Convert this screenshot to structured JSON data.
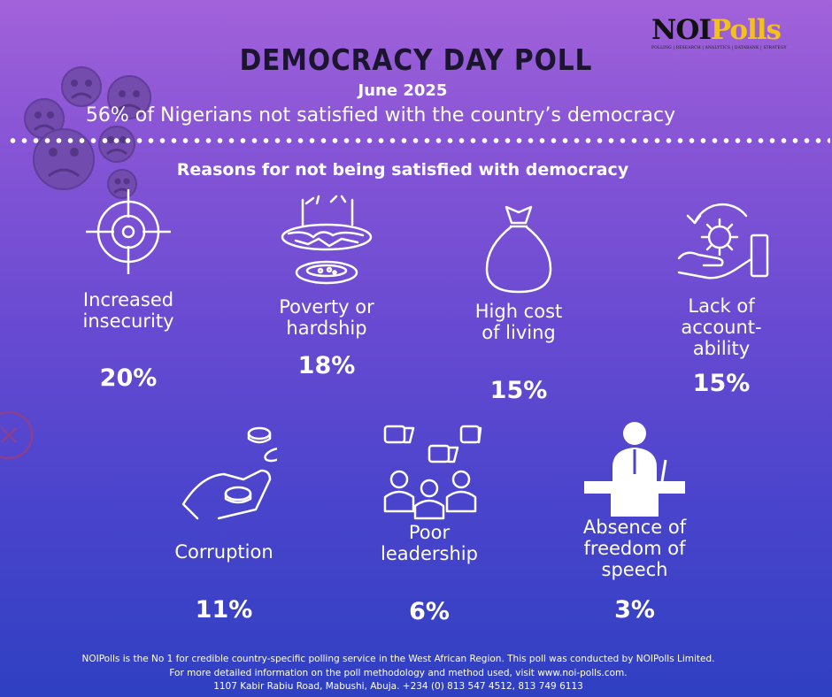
{
  "logo": {
    "brand_part1": "NOI",
    "brand_part2": "Polls",
    "tagline": "POLLING | RESEARCH | ANALYTICS | DATABANK | STRATEGY"
  },
  "header": {
    "title": "DEMOCRACY DAY POLL",
    "date": "June 2025",
    "subtitle": "56% of Nigerians not satisfied with the country’s democracy"
  },
  "section": {
    "title": "Reasons for not being satisfied with democracy"
  },
  "reasons": [
    {
      "label_lines": [
        "Increased",
        "insecurity"
      ],
      "percent": "20%",
      "icon": "target-icon"
    },
    {
      "label_lines": [
        "Poverty or",
        "hardship"
      ],
      "percent": "18%",
      "icon": "empty-bowl-icon"
    },
    {
      "label_lines": [
        "High cost",
        "of living"
      ],
      "percent": "15%",
      "icon": "money-bag-icon"
    },
    {
      "label_lines": [
        "Lack of",
        "account-",
        "ability"
      ],
      "percent": "15%",
      "icon": "hand-gear-icon"
    },
    {
      "label_lines": [
        "Corruption"
      ],
      "percent": "11%",
      "icon": "hand-coins-icon"
    },
    {
      "label_lines": [
        "Poor",
        "leadership"
      ],
      "percent": "6%",
      "icon": "thumbs-down-people-icon"
    },
    {
      "label_lines": [
        "Absence of",
        "freedom of",
        "speech"
      ],
      "percent": "3%",
      "icon": "speaker-podium-icon"
    }
  ],
  "footer": {
    "line1": "NOIPolls is the No 1 for credible country-specific polling service in the West African Region. This poll was conducted by NOIPolls Limited.",
    "line2": "For more detailed information on the poll methodology and method used, visit www.noi-polls.com.",
    "line3": "1107 Kabir Rabiu Road, Mabushi, Abuja. +234 (0) 813 547 4512, 813 749 6113"
  },
  "colors": {
    "background_top": "#a262da",
    "background_bottom": "#2f40c2",
    "title": "#1b1530",
    "logo_accent": "#f2c21a"
  }
}
